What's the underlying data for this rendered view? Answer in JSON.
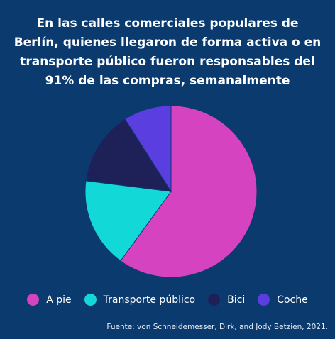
{
  "title": "En las calles comerciales populares de Berlín, quienes llegaron de forma activa o en transporte público fueron responsables del 91% de las compras, semanalmente",
  "source": "Fuente: von Schneidemesser, Dirk, and Jody Betzien, 2021.",
  "colors": {
    "background": "#0a3a6e",
    "slice_border": "#0a3a6e"
  },
  "chart_data": {
    "type": "pie",
    "title": "En las calles comerciales populares de Berlín, quienes llegaron de forma activa o en transporte público fueron responsables del 91% de las compras, semanalmente",
    "legend_position": "bottom",
    "start_angle_deg": 0,
    "direction": "clockwise",
    "slices": [
      {
        "label": "A pie",
        "value": 60,
        "color": "#d643c0"
      },
      {
        "label": "Transporte público",
        "value": 17,
        "color": "#12d8d8"
      },
      {
        "label": "Bici",
        "value": 14,
        "color": "#1e2058"
      },
      {
        "label": "Coche",
        "value": 9,
        "color": "#5a3ee0"
      }
    ]
  }
}
